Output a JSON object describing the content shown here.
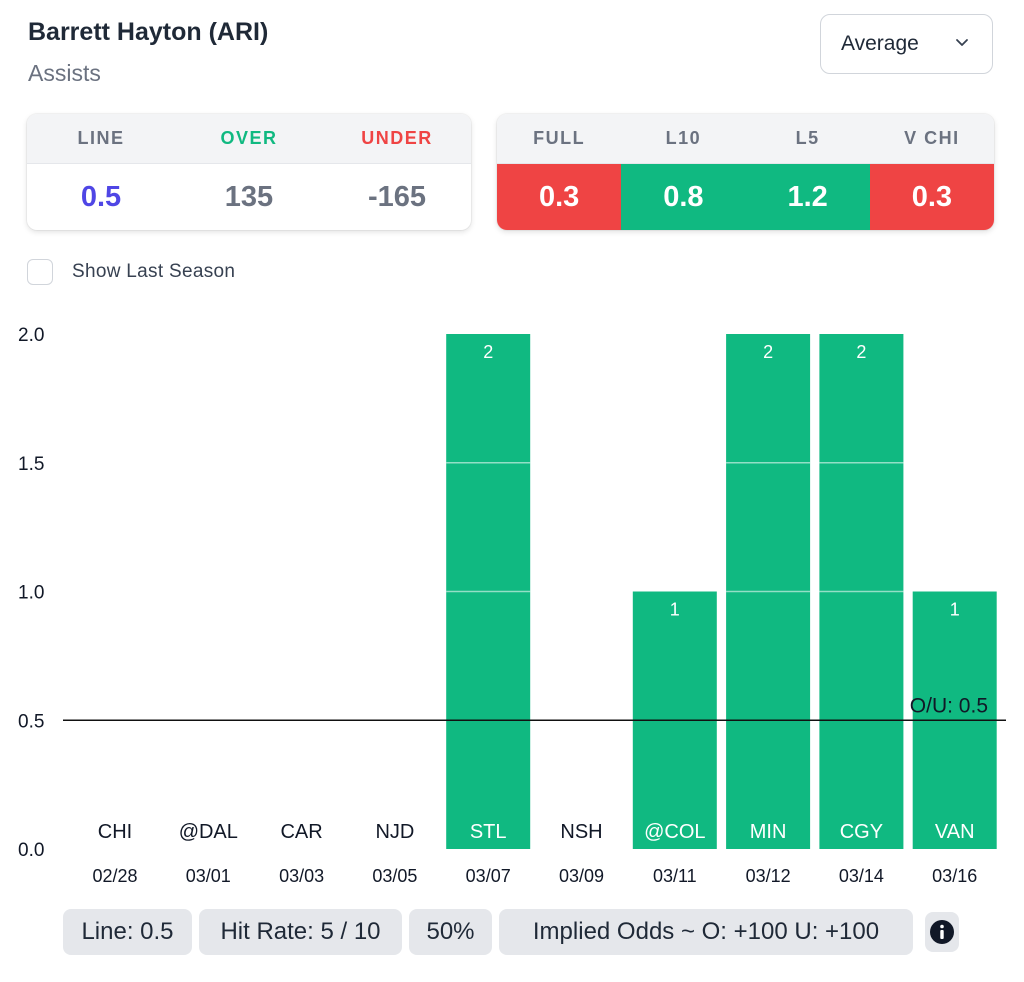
{
  "header": {
    "player": "Barrett Hayton (ARI)",
    "stat": "Assists"
  },
  "dropdown": {
    "selected": "Average"
  },
  "line_card": {
    "labels": [
      "LINE",
      "OVER",
      "UNDER"
    ],
    "values": [
      "0.5",
      "135",
      "-165"
    ],
    "label_colors": [
      "#6b7280",
      "#10b981",
      "#ef4444"
    ],
    "value_colors": [
      "#4f46e5",
      "#6b7280",
      "#6b7280"
    ]
  },
  "avg_card": {
    "labels": [
      "FULL",
      "L10",
      "L5",
      "V CHI"
    ],
    "values": [
      "0.3",
      "0.8",
      "1.2",
      "0.3"
    ],
    "colors": [
      "#ef4444",
      "#10b981",
      "#10b981",
      "#ef4444"
    ]
  },
  "toggle": {
    "label": "Show Last Season",
    "checked": false
  },
  "chart_data": {
    "type": "bar",
    "categories": [
      "CHI",
      "@DAL",
      "CAR",
      "NJD",
      "STL",
      "NSH",
      "@COL",
      "MIN",
      "CGY",
      "VAN"
    ],
    "dates": [
      "02/28",
      "03/01",
      "03/03",
      "03/05",
      "03/07",
      "03/09",
      "03/11",
      "03/12",
      "03/14",
      "03/16"
    ],
    "values": [
      0,
      0,
      0,
      0,
      2,
      0,
      1,
      2,
      2,
      1
    ],
    "ylim": [
      0,
      2
    ],
    "yticks": [
      "0.0",
      "0.5",
      "1.0",
      "1.5",
      "2.0"
    ],
    "ytick_values": [
      0,
      0.5,
      1,
      1.5,
      2
    ],
    "line": 0.5,
    "line_label": "O/U: 0.5",
    "bar_color": "#10b981"
  },
  "footer": {
    "line": "Line: 0.5",
    "hit_rate": "Hit Rate: 5 / 10",
    "percent": "50%",
    "implied": "Implied Odds ~ O: +100 U: +100"
  },
  "icons": {
    "dropdown": "chevron-down-icon",
    "info": "info-icon"
  }
}
